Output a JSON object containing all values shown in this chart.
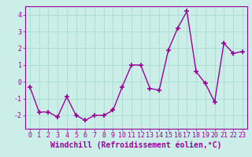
{
  "x": [
    0,
    1,
    2,
    3,
    4,
    5,
    6,
    7,
    8,
    9,
    10,
    11,
    12,
    13,
    14,
    15,
    16,
    17,
    18,
    19,
    20,
    21,
    22,
    23
  ],
  "y": [
    -0.3,
    -1.8,
    -1.8,
    -2.1,
    -0.9,
    -2.0,
    -2.3,
    -2.0,
    -2.0,
    -1.7,
    -0.3,
    1.0,
    1.0,
    -0.4,
    -0.5,
    1.9,
    3.2,
    4.2,
    0.6,
    -0.1,
    -1.2,
    2.3,
    1.7,
    1.8
  ],
  "line_color": "#9b009b",
  "marker": "+",
  "marker_size": 5,
  "marker_lw": 1.2,
  "bg_color": "#cceee8",
  "grid_color": "#b0ddd8",
  "xlabel": "Windchill (Refroidissement éolien,°C)",
  "xlabel_color": "#9b009b",
  "tick_color": "#9b009b",
  "ylim": [
    -2.8,
    4.5
  ],
  "xlim": [
    -0.5,
    23.5
  ],
  "yticks": [
    -2,
    -1,
    0,
    1,
    2,
    3,
    4
  ],
  "xticks": [
    0,
    1,
    2,
    3,
    4,
    5,
    6,
    7,
    8,
    9,
    10,
    11,
    12,
    13,
    14,
    15,
    16,
    17,
    18,
    19,
    20,
    21,
    22,
    23
  ],
  "xtick_labels": [
    "0",
    "1",
    "2",
    "3",
    "4",
    "5",
    "6",
    "7",
    "8",
    "9",
    "10",
    "11",
    "12",
    "13",
    "14",
    "15",
    "16",
    "17",
    "18",
    "19",
    "20",
    "21",
    "22",
    "23"
  ],
  "tick_fontsize": 6,
  "xlabel_fontsize": 7,
  "line_width": 1.0
}
